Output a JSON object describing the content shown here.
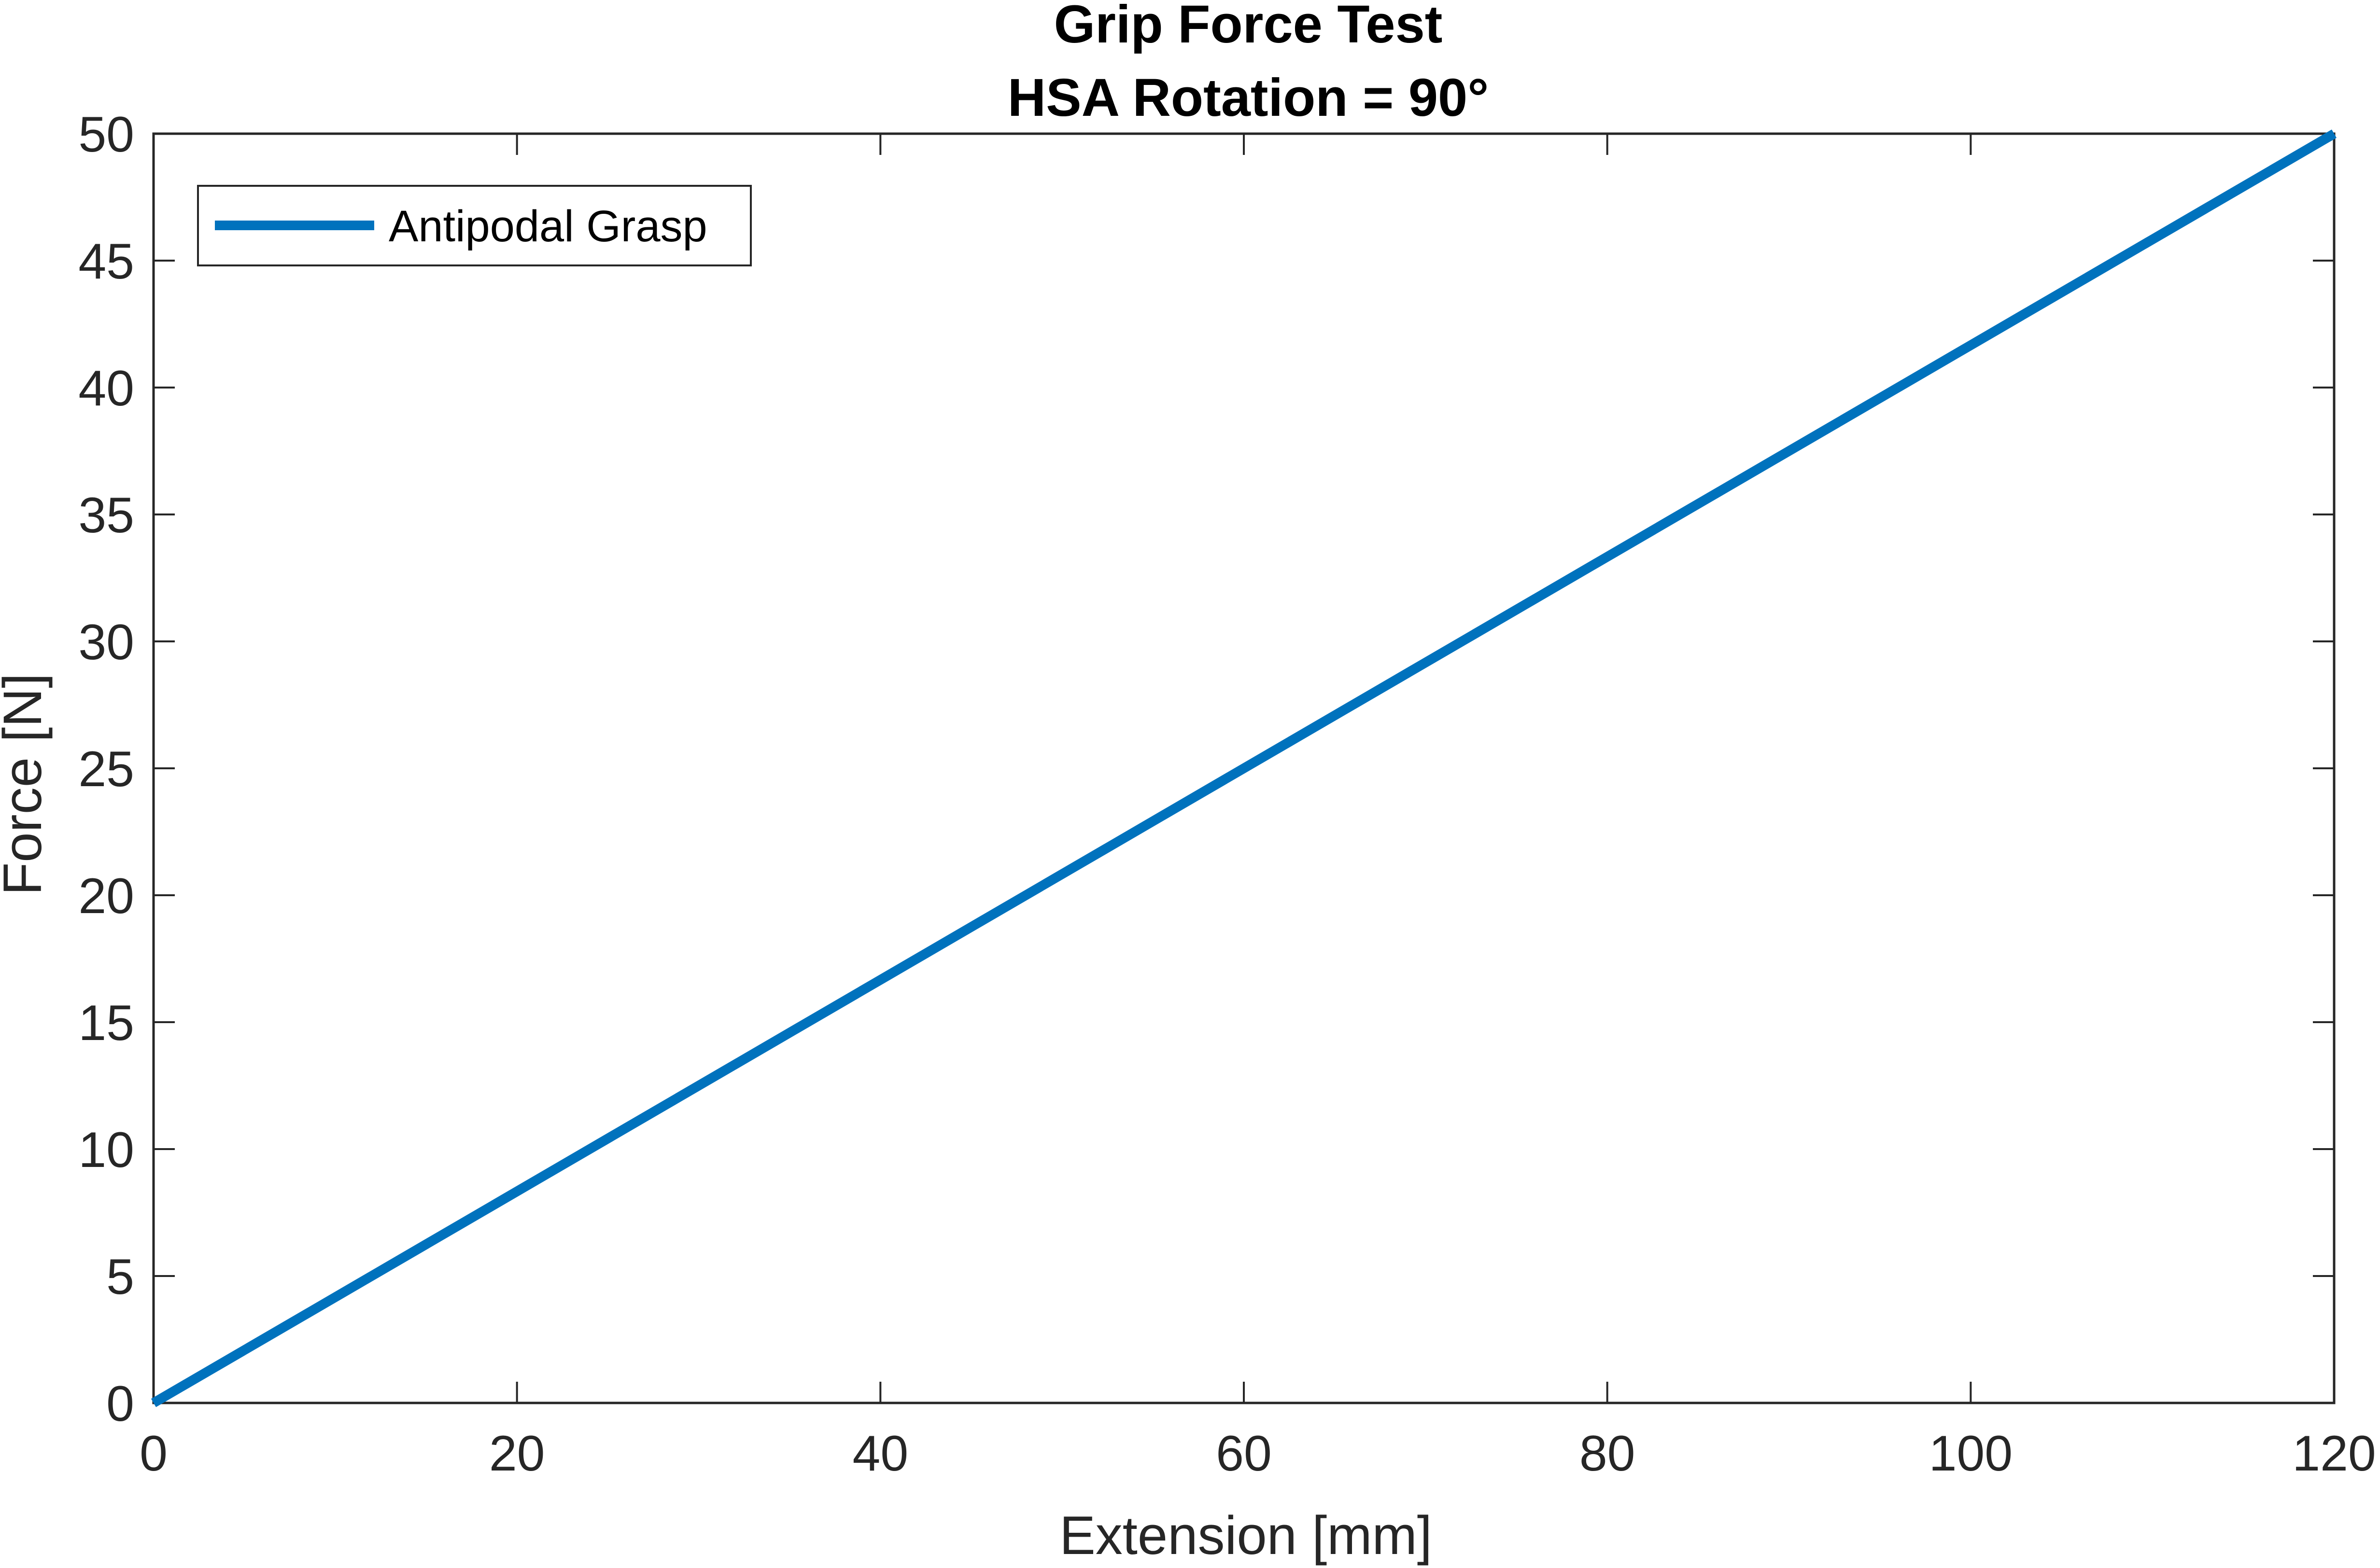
{
  "chart_data": {
    "type": "line",
    "title": "Grip Force Test",
    "subtitle": "HSA Rotation = 90°",
    "xlabel": "Extension [mm]",
    "ylabel": "Force [N]",
    "xlim": [
      0,
      120
    ],
    "ylim": [
      0,
      50
    ],
    "xticks": [
      0,
      20,
      40,
      60,
      80,
      100,
      120
    ],
    "yticks": [
      0,
      5,
      10,
      15,
      20,
      25,
      30,
      35,
      40,
      45,
      50
    ],
    "grid": false,
    "legend_position": "top-left",
    "series": [
      {
        "name": "Antipodal Grasp",
        "color": "#0072BD",
        "x": [
          0,
          120
        ],
        "y": [
          0,
          50
        ]
      }
    ]
  },
  "colors": {
    "axis": "#262626",
    "background": "#ffffff"
  }
}
